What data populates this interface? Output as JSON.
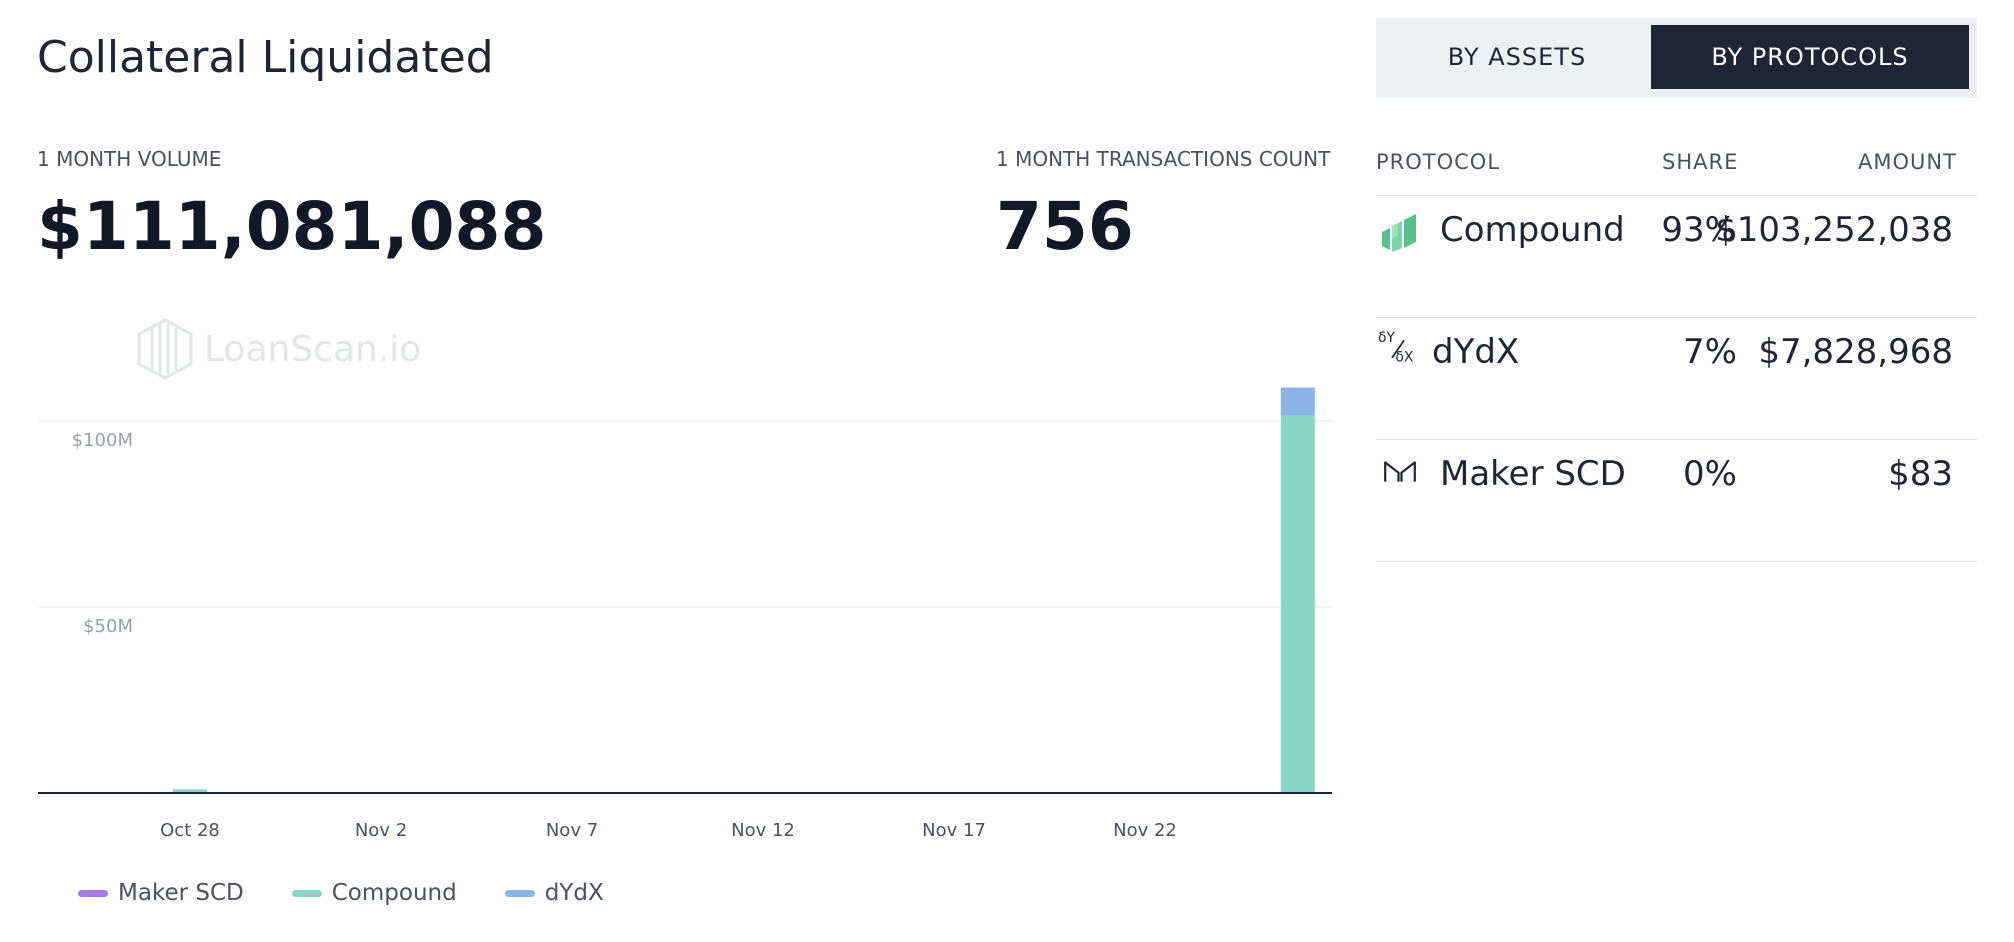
{
  "title": "Collateral Liquidated",
  "stats": {
    "volume_label": "1 MONTH VOLUME",
    "volume_value": "$111,081,088",
    "tx_label": "1 MONTH TRANSACTIONS COUNT",
    "tx_value": "756"
  },
  "watermark": "LoanScan.io",
  "toggle": {
    "assets_label": "BY ASSETS",
    "protocols_label": "BY PROTOCOLS",
    "active": "protocols"
  },
  "table": {
    "headers": [
      "PROTOCOL",
      "SHARE",
      "AMOUNT"
    ],
    "rows": [
      {
        "icon": "compound-icon",
        "name": "Compound",
        "share": "93%",
        "amount": "$103,252,038"
      },
      {
        "icon": "dydx-icon",
        "name": "dYdX",
        "share": "7%",
        "amount": "$7,828,968"
      },
      {
        "icon": "maker-icon",
        "name": "Maker SCD",
        "share": "0%",
        "amount": "$83"
      }
    ]
  },
  "chart_data": {
    "type": "bar",
    "stacked": true,
    "title": "",
    "xlabel": "",
    "ylabel": "",
    "x_ticks": [
      "Oct 28",
      "Nov 2",
      "Nov 7",
      "Nov 12",
      "Nov 17",
      "Nov 22"
    ],
    "y_ticks": [
      "$50M",
      "$100M"
    ],
    "ylim": [
      0,
      100000000
    ],
    "grid": true,
    "legend_position": "bottom-left",
    "series": [
      {
        "name": "Maker SCD",
        "color": "#a57be6",
        "points": [
          {
            "x": "Nov 26",
            "y": 83
          }
        ]
      },
      {
        "name": "Compound",
        "color": "#8bd6c2",
        "points": [
          {
            "x": "Oct 28",
            "y": 1000000
          },
          {
            "x": "Nov 26",
            "y": 101500000
          }
        ]
      },
      {
        "name": "dYdX",
        "color": "#8ab3e8",
        "points": [
          {
            "x": "Nov 26",
            "y": 7500000
          }
        ]
      }
    ]
  }
}
